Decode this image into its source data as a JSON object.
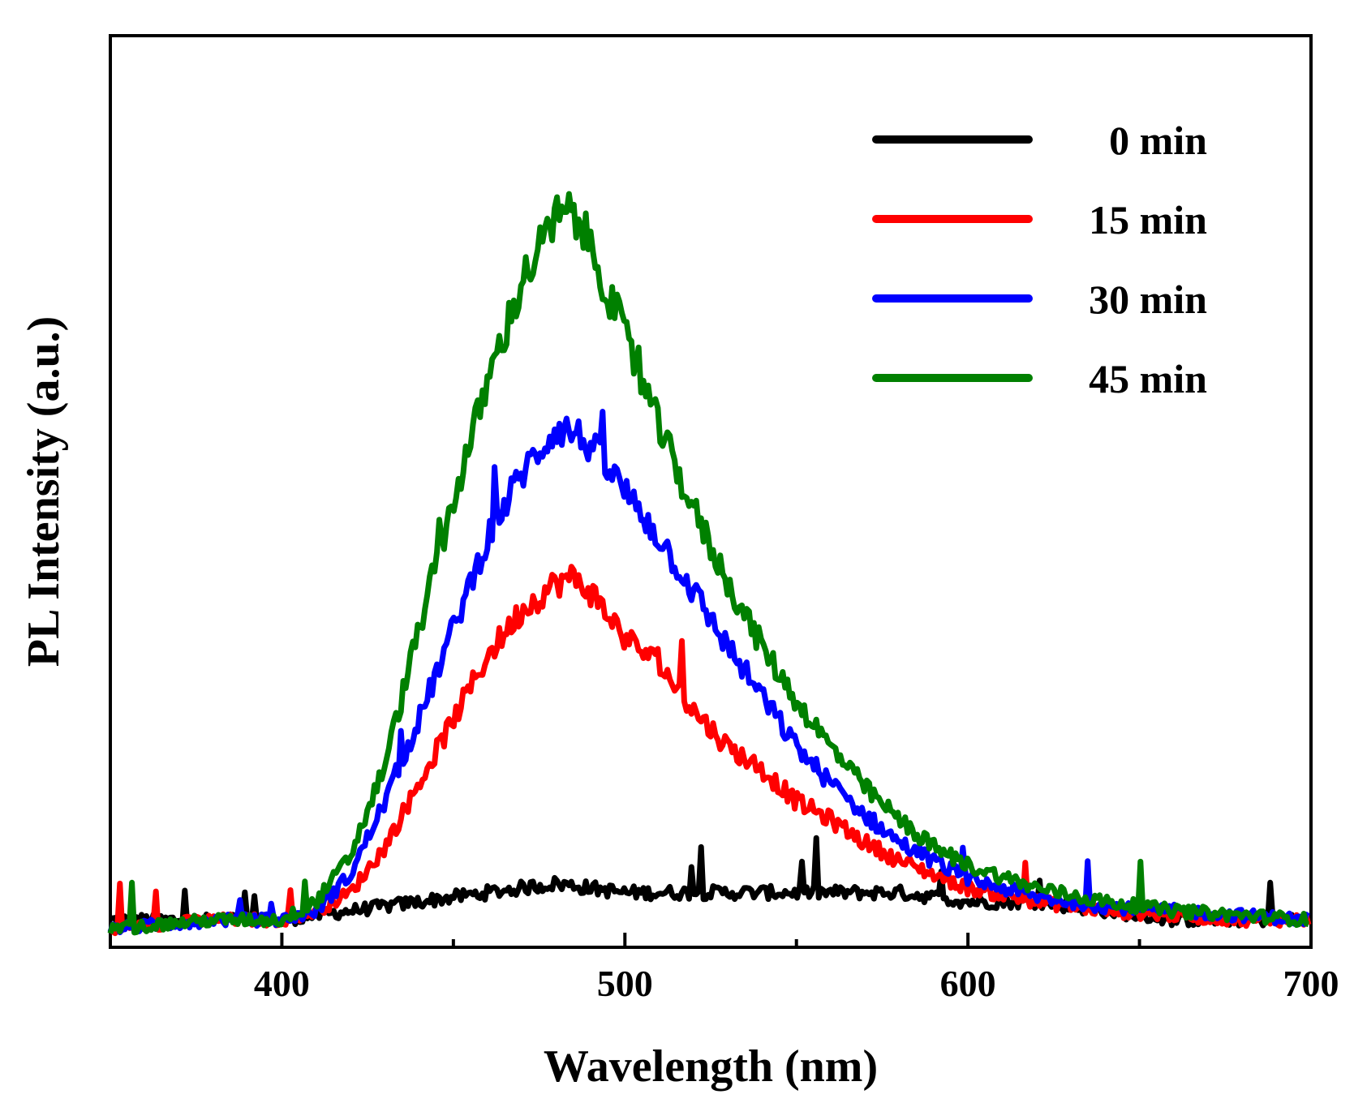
{
  "chart_data": {
    "type": "line",
    "title": "",
    "xlabel": "Wavelength (nm)",
    "ylabel": "PL Intensity (a.u.)",
    "xlim": [
      350,
      700
    ],
    "ylim": [
      0,
      100
    ],
    "x_ticks": [
      400,
      500,
      600,
      700
    ],
    "x_tick_labels": [
      "400",
      "500",
      "600",
      "700"
    ],
    "y_ticks_shown": false,
    "legend_position": "top-right",
    "series": [
      {
        "name": "0 min",
        "color": "#000000",
        "x": [
          350,
          380,
          400,
          420,
          440,
          460,
          480,
          500,
          520,
          540,
          560,
          580,
          600,
          620,
          640,
          660,
          680,
          700
        ],
        "values": [
          3,
          3,
          3,
          4,
          5,
          6,
          7,
          6,
          6,
          6,
          6,
          6,
          5,
          5,
          4,
          3,
          3,
          3
        ]
      },
      {
        "name": "15 min",
        "color": "#ff0000",
        "x": [
          350,
          380,
          400,
          410,
          420,
          430,
          440,
          450,
          460,
          470,
          480,
          485,
          490,
          500,
          510,
          520,
          530,
          540,
          550,
          560,
          570,
          580,
          590,
          600,
          620,
          640,
          660,
          680,
          700
        ],
        "values": [
          2,
          3,
          3,
          4,
          6,
          11,
          18,
          25,
          32,
          37,
          40,
          40.5,
          39,
          34,
          31,
          26,
          22,
          19.5,
          16,
          14,
          11.5,
          9.5,
          8,
          6.5,
          5,
          4,
          3.5,
          3,
          3
        ]
      },
      {
        "name": "30 min",
        "color": "#0000ff",
        "x": [
          350,
          380,
          400,
          410,
          420,
          430,
          440,
          450,
          460,
          470,
          480,
          485,
          490,
          500,
          510,
          520,
          530,
          540,
          550,
          560,
          570,
          580,
          590,
          600,
          620,
          640,
          660,
          680,
          700
        ],
        "values": [
          2,
          3,
          3,
          4,
          8,
          16,
          25,
          35,
          45,
          52,
          57,
          56.5,
          55,
          50,
          45,
          39,
          33,
          27.5,
          22,
          18,
          14.5,
          11.5,
          9.5,
          7.5,
          5.5,
          4.5,
          4,
          3.5,
          3
        ]
      },
      {
        "name": "45 min",
        "color": "#008000",
        "x": [
          350,
          380,
          400,
          410,
          420,
          430,
          440,
          450,
          460,
          470,
          480,
          485,
          490,
          500,
          510,
          520,
          530,
          540,
          550,
          560,
          570,
          580,
          590,
          600,
          620,
          640,
          660,
          680,
          700
        ],
        "values": [
          2,
          3,
          3,
          5,
          10,
          20,
          35,
          49,
          62,
          73,
          80,
          80.5,
          77,
          67,
          57,
          48,
          40,
          33,
          27,
          22,
          17.5,
          14,
          11,
          9,
          6.5,
          5,
          4,
          3.5,
          3
        ]
      }
    ]
  }
}
